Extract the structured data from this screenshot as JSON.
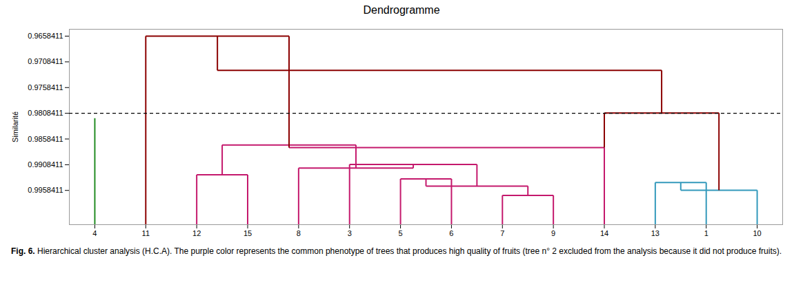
{
  "chart_data": {
    "type": "dendrogram",
    "title": "Dendrogramme",
    "ylabel": "Similarité",
    "categories": [
      "4",
      "11",
      "12",
      "15",
      "8",
      "3",
      "5",
      "6",
      "7",
      "9",
      "14",
      "13",
      "1",
      "10"
    ],
    "links": [
      {
        "children": [
          "4"
        ],
        "value": 0.9818,
        "color": "#228B22"
      },
      {
        "children": [
          "12",
          "15"
        ],
        "value": 0.9928,
        "color": "#C4186C"
      },
      {
        "children": [
          "5",
          "6"
        ],
        "value": 0.9936,
        "color": "#C4186C"
      },
      {
        "children": [
          "7",
          "9"
        ],
        "value": 0.9968,
        "color": "#C4186C"
      },
      {
        "children": [
          2,
          3
        ],
        "value": 0.995,
        "color": "#C4186C"
      },
      {
        "children": [
          "3",
          4
        ],
        "value": 0.9908,
        "color": "#C4186C"
      },
      {
        "children": [
          "8",
          5
        ],
        "value": 0.9915,
        "color": "#C4186C"
      },
      {
        "children": [
          1,
          6
        ],
        "value": 0.987,
        "color": "#C4186C"
      },
      {
        "children": [
          7,
          "14"
        ],
        "value": 0.9875,
        "color": "#C4186C"
      },
      {
        "children": [
          "13",
          "1"
        ],
        "value": 0.9943,
        "color": "#3399BB"
      },
      {
        "children": [
          9,
          "10"
        ],
        "value": 0.9958,
        "color": "#3399BB"
      },
      {
        "children": [
          {
            "link": 8,
            "child": 1
          },
          10
        ],
        "value": 0.9808,
        "color": "#8B0000"
      },
      {
        "children": [
          "11",
          {
            "link": 8,
            "child": 0
          }
        ],
        "value": 0.9658411,
        "color": "#8B0000"
      },
      {
        "children": [
          12,
          11
        ],
        "value": 0.9725,
        "color": "#8B0000"
      }
    ],
    "ylim": [
      1.0025,
      0.9645
    ],
    "yticks": [
      0.9658411,
      0.9708411,
      0.9758411,
      0.9808411,
      0.9858411,
      0.9908411,
      0.9958411
    ],
    "reference_lines": [
      {
        "y": 0.9808411,
        "line_style": "dashed",
        "color": "black"
      }
    ],
    "grid": false,
    "caption_label": "Fig. 6.",
    "caption": "Hierarchical cluster analysis (H.C.A). The purple color represents the common phenotype of trees that produces high quality of fruits (tree n° 2 excluded from the analysis because it did not produce fruits)."
  }
}
